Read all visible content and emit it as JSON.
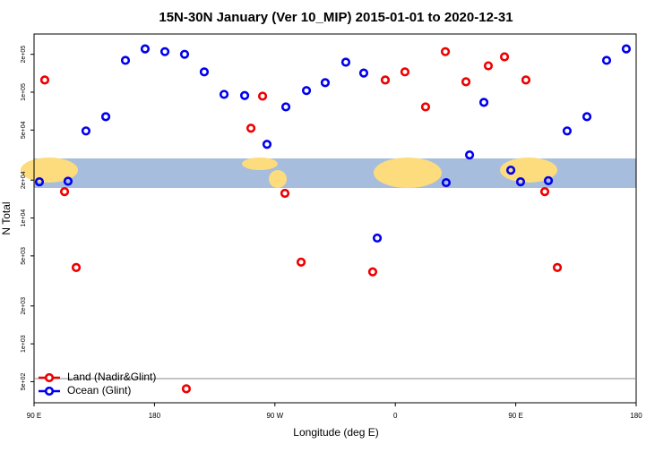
{
  "chart_data": {
    "type": "scatter",
    "title": "15N-30N January (Ver 10_MIP)   2015-01-01 to 2020-12-31",
    "x_label": "Longitude (deg E)",
    "y_label": "N Total",
    "log_y": true,
    "xlim": [
      90,
      540
    ],
    "xticks": [
      {
        "value": 90,
        "label": "90 E"
      },
      180,
      {
        "value": 270,
        "label": "90 W"
      },
      {
        "value": 360,
        "label": "0"
      },
      {
        "value": 450,
        "label": "90 E"
      },
      {
        "value": 540,
        "label": "180"
      }
    ],
    "ylim": [
      340,
      290000
    ],
    "yticks": [
      {
        "value": 500,
        "label": "5e+02"
      },
      {
        "value": 1000,
        "label": "1e+03"
      },
      {
        "value": 2000,
        "label": "2e+03"
      },
      {
        "value": 5000,
        "label": "5e+03"
      },
      {
        "value": 10000,
        "label": "1e+04"
      },
      {
        "value": 20000,
        "label": "2e+04"
      },
      {
        "value": 50000,
        "label": "5e+04"
      },
      {
        "value": 100000,
        "label": "1e+05"
      },
      {
        "value": 200000,
        "label": "2e+05"
      }
    ],
    "legend": "bottom-left",
    "series": [
      {
        "name": "Land (Nadir&Glint)",
        "color": "#ee0000",
        "x": [
          98,
          112.8,
          121.5,
          203.8,
          252.1,
          260.8,
          277.5,
          289.6,
          343.1,
          352.5,
          367.2,
          382.6,
          397.4,
          412.8,
          429.5,
          441.6,
          457.6,
          471.7,
          481.1
        ],
        "values": [
          125000,
          16200,
          4040,
          439,
          51700,
          93000,
          15700,
          4460,
          3730,
          125000,
          145000,
          76400,
          210000,
          121000,
          162000,
          191000,
          125000,
          16200,
          4040
        ]
      },
      {
        "name": "Ocean (Glint)",
        "color": "#0000ee",
        "x": [
          94,
          115.4,
          128.8,
          143.6,
          158.3,
          173,
          187.8,
          202.5,
          217.2,
          232,
          247.4,
          264.1,
          278.2,
          293.6,
          307.6,
          323,
          336.4,
          346.5,
          398,
          415.5,
          426.2,
          446.3,
          453.6,
          474.4,
          488.4,
          503.2,
          517.9,
          532.6
        ],
        "values": [
          19400,
          19600,
          49200,
          63900,
          179000,
          221000,
          210000,
          200000,
          145000,
          96100,
          94000,
          38500,
          76400,
          103000,
          119000,
          173000,
          142000,
          6930,
          19100,
          31700,
          83000,
          24000,
          19400,
          19800,
          49200,
          63900,
          179000,
          221000
        ]
      }
    ]
  }
}
